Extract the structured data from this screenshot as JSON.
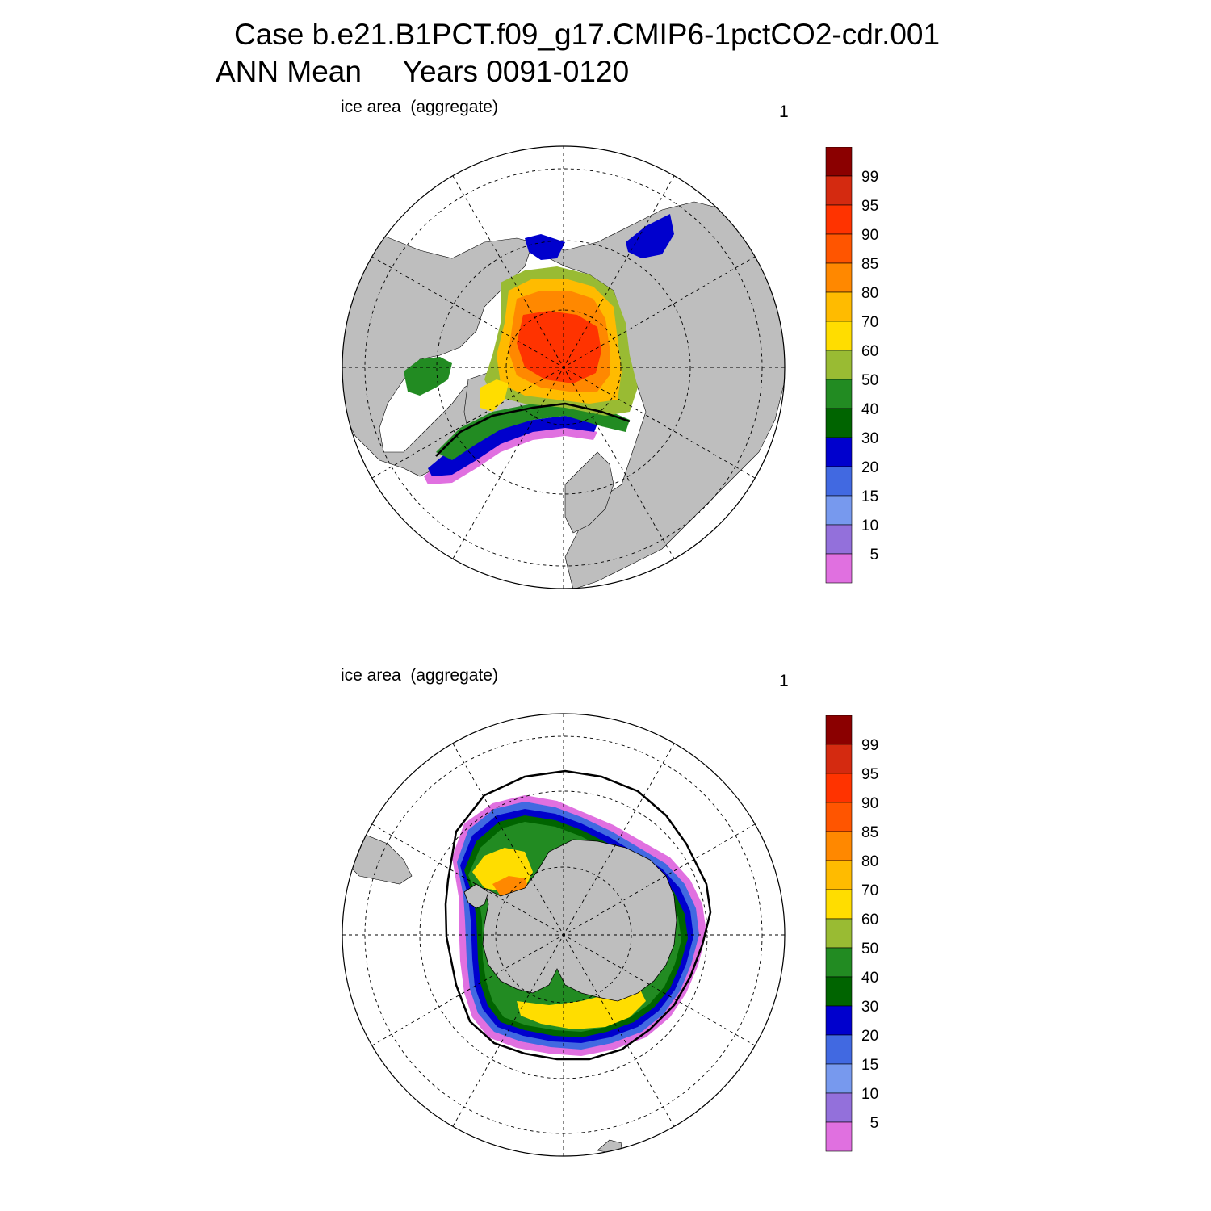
{
  "figure": {
    "title_line1": "Case b.e21.B1PCT.f09_g17.CMIP6-1pctCO2-cdr.001",
    "title_line2": "ANN Mean     Years 0091-0120"
  },
  "colorbar": {
    "labels": [
      "99",
      "95",
      "90",
      "85",
      "80",
      "70",
      "60",
      "50",
      "40",
      "30",
      "20",
      "15",
      "10",
      "5"
    ],
    "colors": [
      "#8b0000",
      "#d42a10",
      "#ff3300",
      "#ff5500",
      "#ff8800",
      "#ffbb00",
      "#ffdd00",
      "#99bb33",
      "#228b22",
      "#006400",
      "#0000cd",
      "#4169e1",
      "#7799ee",
      "#9370db",
      "#e070e0"
    ]
  },
  "panels": [
    {
      "id": "north",
      "label": "ice area  (aggregate)",
      "number": "1",
      "hemisphere": "north"
    },
    {
      "id": "south",
      "label": "ice area  (aggregate)",
      "number": "1",
      "hemisphere": "south"
    }
  ],
  "colors": {
    "land": "#bebebe",
    "ocean": "#ffffff",
    "grid": "#000000"
  }
}
